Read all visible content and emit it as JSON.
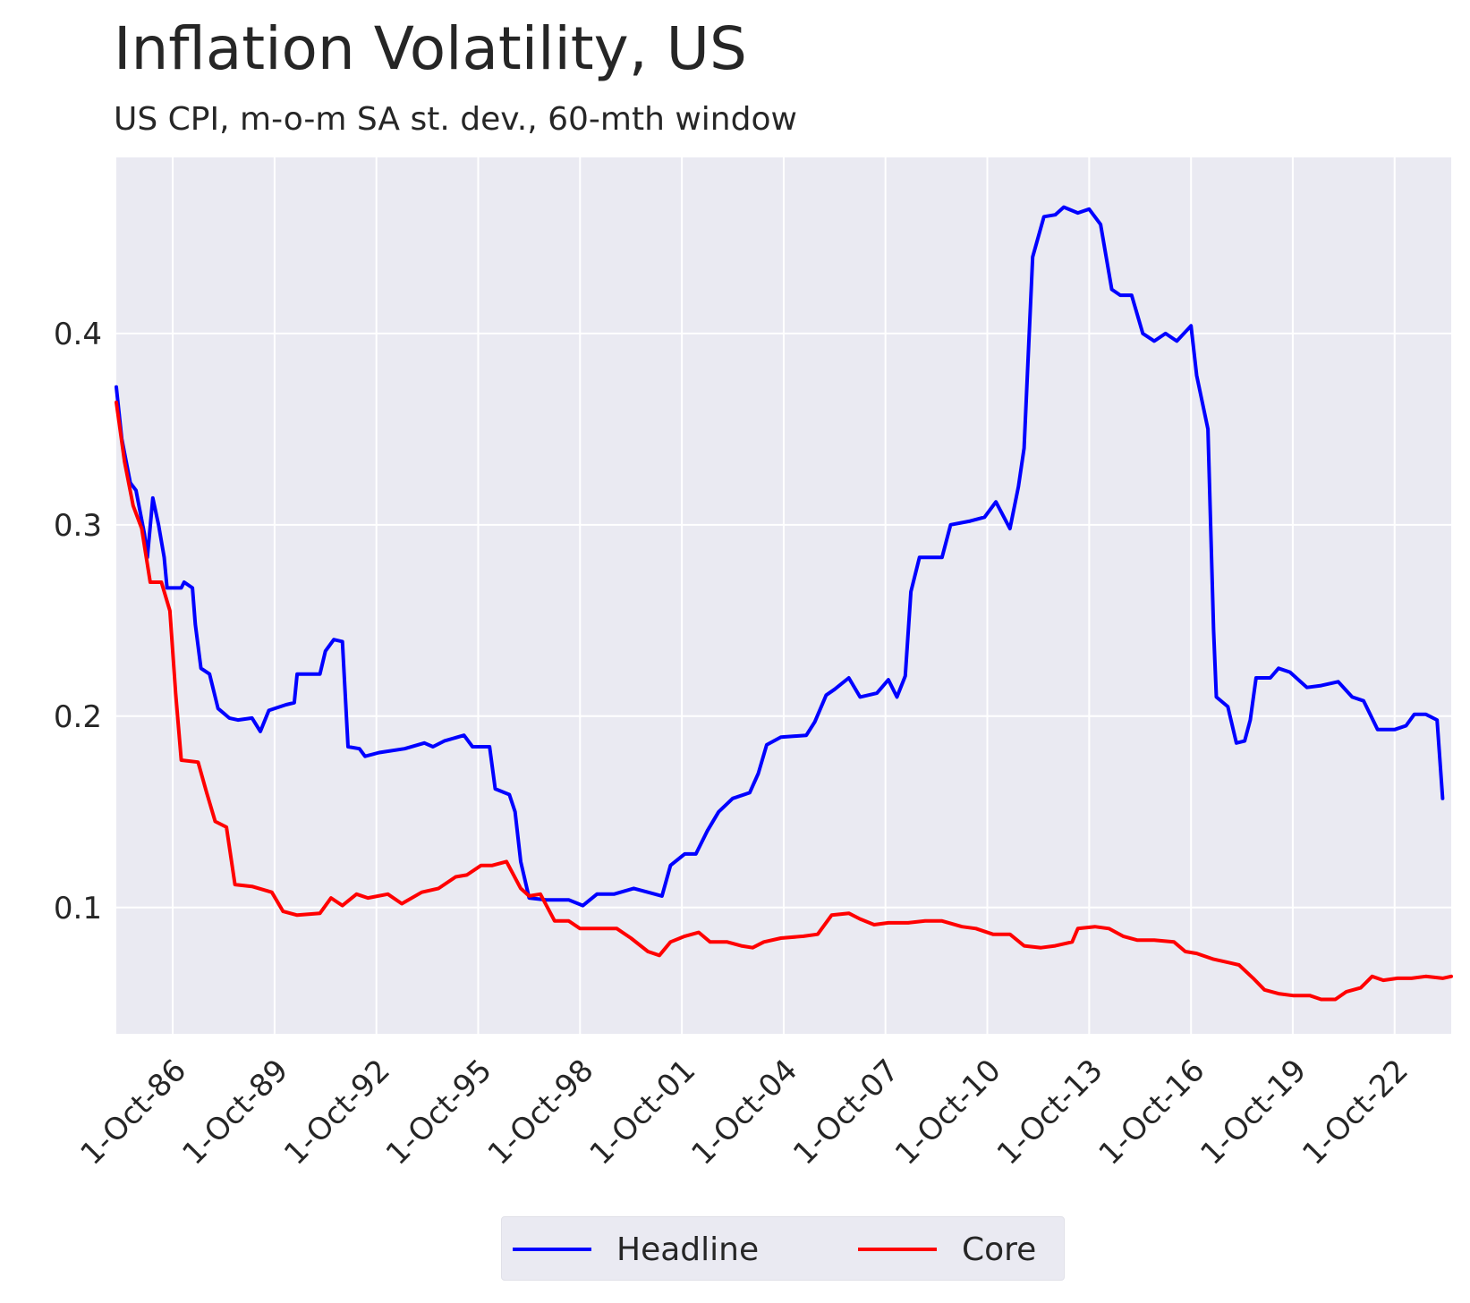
{
  "title": "Inflation Volatility, US",
  "subtitle": "US CPI, m-o-m SA st. dev., 60-mth window",
  "chart_data": {
    "type": "line",
    "title": "Inflation Volatility, US",
    "subtitle": "US CPI, m-o-m SA st. dev., 60-mth window",
    "xlabel": "",
    "ylabel": "",
    "xlim": [
      "1985-02-01",
      "2024-06-01"
    ],
    "ylim": [
      0.034,
      0.492
    ],
    "grid": true,
    "legend": "bottom-center",
    "x_ticks": [
      "1986-10-01",
      "1989-10-01",
      "1992-10-01",
      "1995-10-01",
      "1998-10-01",
      "2001-10-01",
      "2004-10-01",
      "2007-10-01",
      "2010-10-01",
      "2013-10-01",
      "2016-10-01",
      "2019-10-01",
      "2022-10-01"
    ],
    "x_tick_labels": [
      "1-Oct-86",
      "1-Oct-89",
      "1-Oct-92",
      "1-Oct-95",
      "1-Oct-98",
      "1-Oct-01",
      "1-Oct-04",
      "1-Oct-07",
      "1-Oct-10",
      "1-Oct-13",
      "1-Oct-16",
      "1-Oct-19",
      "1-Oct-22"
    ],
    "y_ticks": [
      0.1,
      0.2,
      0.3,
      0.4
    ],
    "y_tick_labels": [
      "0.1",
      "0.2",
      "0.3",
      "0.4"
    ],
    "series": [
      {
        "name": "Headline",
        "color": "#0000ff",
        "points": [
          [
            "1985-02-01",
            0.372
          ],
          [
            "1985-04-01",
            0.345
          ],
          [
            "1985-07-01",
            0.322
          ],
          [
            "1985-09-01",
            0.318
          ],
          [
            "1985-12-01",
            0.295
          ],
          [
            "1986-01-01",
            0.283
          ],
          [
            "1986-03-01",
            0.314
          ],
          [
            "1986-05-01",
            0.3
          ],
          [
            "1986-07-01",
            0.283
          ],
          [
            "1986-08-01",
            0.267
          ],
          [
            "1987-01-01",
            0.267
          ],
          [
            "1987-02-01",
            0.27
          ],
          [
            "1987-05-01",
            0.267
          ],
          [
            "1987-06-01",
            0.248
          ],
          [
            "1987-08-01",
            0.225
          ],
          [
            "1987-11-01",
            0.222
          ],
          [
            "1988-02-01",
            0.204
          ],
          [
            "1988-06-01",
            0.199
          ],
          [
            "1988-09-01",
            0.198
          ],
          [
            "1989-02-01",
            0.199
          ],
          [
            "1989-05-01",
            0.192
          ],
          [
            "1989-08-01",
            0.203
          ],
          [
            "1990-02-01",
            0.206
          ],
          [
            "1990-05-01",
            0.207
          ],
          [
            "1990-06-01",
            0.222
          ],
          [
            "1991-02-01",
            0.222
          ],
          [
            "1991-04-01",
            0.234
          ],
          [
            "1991-07-01",
            0.24
          ],
          [
            "1991-10-01",
            0.239
          ],
          [
            "1991-12-01",
            0.184
          ],
          [
            "1992-04-01",
            0.183
          ],
          [
            "1992-06-01",
            0.179
          ],
          [
            "1992-11-01",
            0.181
          ],
          [
            "1993-08-01",
            0.183
          ],
          [
            "1994-03-01",
            0.186
          ],
          [
            "1994-06-01",
            0.184
          ],
          [
            "1994-10-01",
            0.187
          ],
          [
            "1995-05-01",
            0.19
          ],
          [
            "1995-08-01",
            0.184
          ],
          [
            "1996-02-01",
            0.184
          ],
          [
            "1996-04-01",
            0.162
          ],
          [
            "1996-09-01",
            0.159
          ],
          [
            "1996-11-01",
            0.15
          ],
          [
            "1997-01-01",
            0.124
          ],
          [
            "1997-04-01",
            0.105
          ],
          [
            "1997-10-01",
            0.104
          ],
          [
            "1998-06-01",
            0.104
          ],
          [
            "1998-11-01",
            0.101
          ],
          [
            "1999-04-01",
            0.107
          ],
          [
            "1999-10-01",
            0.107
          ],
          [
            "2000-05-01",
            0.11
          ],
          [
            "2000-10-01",
            0.108
          ],
          [
            "2001-03-01",
            0.106
          ],
          [
            "2001-06-01",
            0.122
          ],
          [
            "2001-11-01",
            0.128
          ],
          [
            "2002-03-01",
            0.128
          ],
          [
            "2002-07-01",
            0.14
          ],
          [
            "2002-11-01",
            0.15
          ],
          [
            "2003-04-01",
            0.157
          ],
          [
            "2003-10-01",
            0.16
          ],
          [
            "2004-01-01",
            0.17
          ],
          [
            "2004-04-01",
            0.185
          ],
          [
            "2004-09-01",
            0.189
          ],
          [
            "2005-06-01",
            0.19
          ],
          [
            "2005-09-01",
            0.197
          ],
          [
            "2006-01-01",
            0.211
          ],
          [
            "2006-04-01",
            0.214
          ],
          [
            "2006-09-01",
            0.22
          ],
          [
            "2007-01-01",
            0.21
          ],
          [
            "2007-07-01",
            0.212
          ],
          [
            "2007-11-01",
            0.219
          ],
          [
            "2008-02-01",
            0.21
          ],
          [
            "2008-05-01",
            0.221
          ],
          [
            "2008-07-01",
            0.265
          ],
          [
            "2008-10-01",
            0.283
          ],
          [
            "2009-06-01",
            0.283
          ],
          [
            "2009-09-01",
            0.3
          ],
          [
            "2010-04-01",
            0.302
          ],
          [
            "2010-09-01",
            0.304
          ],
          [
            "2011-01-01",
            0.312
          ],
          [
            "2011-06-01",
            0.298
          ],
          [
            "2011-09-01",
            0.32
          ],
          [
            "2011-11-01",
            0.34
          ],
          [
            "2012-02-01",
            0.44
          ],
          [
            "2012-06-01",
            0.461
          ],
          [
            "2012-10-01",
            0.462
          ],
          [
            "2013-01-01",
            0.466
          ],
          [
            "2013-06-01",
            0.463
          ],
          [
            "2013-10-01",
            0.465
          ],
          [
            "2014-02-01",
            0.457
          ],
          [
            "2014-06-01",
            0.423
          ],
          [
            "2014-09-01",
            0.42
          ],
          [
            "2015-01-01",
            0.42
          ],
          [
            "2015-05-01",
            0.4
          ],
          [
            "2015-09-01",
            0.396
          ],
          [
            "2016-01-01",
            0.4
          ],
          [
            "2016-05-01",
            0.396
          ],
          [
            "2016-10-01",
            0.404
          ],
          [
            "2016-12-01",
            0.378
          ],
          [
            "2017-04-01",
            0.35
          ],
          [
            "2017-06-01",
            0.245
          ],
          [
            "2017-07-01",
            0.21
          ],
          [
            "2017-11-01",
            0.205
          ],
          [
            "2018-02-01",
            0.186
          ],
          [
            "2018-05-01",
            0.187
          ],
          [
            "2018-07-01",
            0.198
          ],
          [
            "2018-09-01",
            0.22
          ],
          [
            "2019-02-01",
            0.22
          ],
          [
            "2019-05-01",
            0.225
          ],
          [
            "2019-09-01",
            0.223
          ],
          [
            "2020-03-01",
            0.215
          ],
          [
            "2020-08-01",
            0.216
          ],
          [
            "2021-02-01",
            0.218
          ],
          [
            "2021-07-01",
            0.21
          ],
          [
            "2021-11-01",
            0.208
          ],
          [
            "2022-04-01",
            0.193
          ],
          [
            "2022-10-01",
            0.193
          ],
          [
            "2023-02-01",
            0.195
          ],
          [
            "2023-05-01",
            0.201
          ],
          [
            "2023-09-01",
            0.201
          ],
          [
            "2024-01-01",
            0.198
          ],
          [
            "2024-03-01",
            0.157
          ]
        ]
      },
      {
        "name": "Core",
        "color": "#ff0000",
        "points": [
          [
            "1985-02-01",
            0.364
          ],
          [
            "1985-05-01",
            0.333
          ],
          [
            "1985-08-01",
            0.31
          ],
          [
            "1985-11-01",
            0.298
          ],
          [
            "1986-02-01",
            0.27
          ],
          [
            "1986-06-01",
            0.27
          ],
          [
            "1986-09-01",
            0.255
          ],
          [
            "1986-11-01",
            0.212
          ],
          [
            "1987-01-01",
            0.177
          ],
          [
            "1987-07-01",
            0.176
          ],
          [
            "1987-10-01",
            0.16
          ],
          [
            "1988-01-01",
            0.145
          ],
          [
            "1988-05-01",
            0.142
          ],
          [
            "1988-08-01",
            0.112
          ],
          [
            "1989-02-01",
            0.111
          ],
          [
            "1989-09-01",
            0.108
          ],
          [
            "1990-01-01",
            0.098
          ],
          [
            "1990-06-01",
            0.096
          ],
          [
            "1991-02-01",
            0.097
          ],
          [
            "1991-06-01",
            0.105
          ],
          [
            "1991-10-01",
            0.101
          ],
          [
            "1992-03-01",
            0.107
          ],
          [
            "1992-07-01",
            0.105
          ],
          [
            "1993-02-01",
            0.107
          ],
          [
            "1993-07-01",
            0.102
          ],
          [
            "1994-02-01",
            0.108
          ],
          [
            "1994-08-01",
            0.11
          ],
          [
            "1995-02-01",
            0.116
          ],
          [
            "1995-06-01",
            0.117
          ],
          [
            "1995-11-01",
            0.122
          ],
          [
            "1996-03-01",
            0.122
          ],
          [
            "1996-08-01",
            0.124
          ],
          [
            "1997-01-01",
            0.11
          ],
          [
            "1997-04-01",
            0.106
          ],
          [
            "1997-08-01",
            0.107
          ],
          [
            "1998-01-01",
            0.093
          ],
          [
            "1998-06-01",
            0.093
          ],
          [
            "1998-10-01",
            0.089
          ],
          [
            "1999-04-01",
            0.089
          ],
          [
            "1999-11-01",
            0.089
          ],
          [
            "2000-04-01",
            0.084
          ],
          [
            "2000-10-01",
            0.077
          ],
          [
            "2001-02-01",
            0.075
          ],
          [
            "2001-06-01",
            0.082
          ],
          [
            "2001-11-01",
            0.085
          ],
          [
            "2002-04-01",
            0.087
          ],
          [
            "2002-08-01",
            0.082
          ],
          [
            "2003-02-01",
            0.082
          ],
          [
            "2003-07-01",
            0.08
          ],
          [
            "2003-11-01",
            0.079
          ],
          [
            "2004-03-01",
            0.082
          ],
          [
            "2004-09-01",
            0.084
          ],
          [
            "2005-05-01",
            0.085
          ],
          [
            "2005-10-01",
            0.086
          ],
          [
            "2006-03-01",
            0.096
          ],
          [
            "2006-09-01",
            0.097
          ],
          [
            "2007-01-01",
            0.094
          ],
          [
            "2007-06-01",
            0.091
          ],
          [
            "2007-11-01",
            0.092
          ],
          [
            "2008-06-01",
            0.092
          ],
          [
            "2008-12-01",
            0.093
          ],
          [
            "2009-06-01",
            0.093
          ],
          [
            "2010-01-01",
            0.09
          ],
          [
            "2010-06-01",
            0.089
          ],
          [
            "2010-12-01",
            0.086
          ],
          [
            "2011-06-01",
            0.086
          ],
          [
            "2011-11-01",
            0.08
          ],
          [
            "2012-05-01",
            0.079
          ],
          [
            "2012-10-01",
            0.08
          ],
          [
            "2013-04-01",
            0.082
          ],
          [
            "2013-06-01",
            0.089
          ],
          [
            "2013-12-01",
            0.09
          ],
          [
            "2014-05-01",
            0.089
          ],
          [
            "2014-10-01",
            0.085
          ],
          [
            "2015-03-01",
            0.083
          ],
          [
            "2015-09-01",
            0.083
          ],
          [
            "2016-04-01",
            0.082
          ],
          [
            "2016-08-01",
            0.077
          ],
          [
            "2016-12-01",
            0.076
          ],
          [
            "2017-06-01",
            0.073
          ],
          [
            "2017-12-01",
            0.071
          ],
          [
            "2018-03-01",
            0.07
          ],
          [
            "2018-08-01",
            0.063
          ],
          [
            "2018-12-01",
            0.057
          ],
          [
            "2019-05-01",
            0.055
          ],
          [
            "2019-10-01",
            0.054
          ],
          [
            "2020-04-01",
            0.054
          ],
          [
            "2020-08-01",
            0.052
          ],
          [
            "2021-01-01",
            0.052
          ],
          [
            "2021-05-01",
            0.056
          ],
          [
            "2021-10-01",
            0.058
          ],
          [
            "2022-02-01",
            0.064
          ],
          [
            "2022-06-01",
            0.062
          ],
          [
            "2022-11-01",
            0.063
          ],
          [
            "2023-04-01",
            0.063
          ],
          [
            "2023-09-01",
            0.064
          ],
          [
            "2024-03-01",
            0.063
          ],
          [
            "2024-06-01",
            0.064
          ]
        ]
      }
    ]
  }
}
